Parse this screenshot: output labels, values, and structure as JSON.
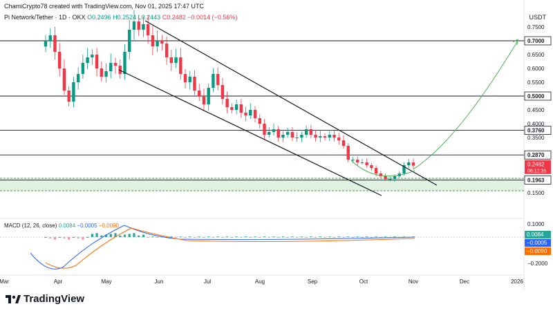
{
  "header": {
    "credit": "ChamiCrypto78 created with TradingView.com, Nov 01, 2025 17:47 UTC",
    "symbol": "Pi Network/Tether · 1D · OKX",
    "ohlc_o": "O0.2496",
    "ohlc_h": "H0.2524",
    "ohlc_l": "L0.2443",
    "ohlc_c": "C0.2482",
    "change": "−0.0014 (−0.56%)"
  },
  "axis": {
    "currency": "USDT",
    "price_ticks": [
      "0.7500",
      "0.6500",
      "0.6000",
      "0.5500",
      "0.4500",
      "0.4000",
      "0.3500",
      "0.2000",
      "0.1500"
    ],
    "macd_ticks": [
      "0.1000",
      "−0.1000",
      "−0.2000"
    ],
    "months": [
      "Mar",
      "Apr",
      "May",
      "Jun",
      "Jul",
      "Aug",
      "Sep",
      "Oct",
      "Nov",
      "Dec",
      "2026"
    ]
  },
  "levels": [
    {
      "label": "0.7000",
      "value": 0.7
    },
    {
      "label": "0.5000",
      "value": 0.5
    },
    {
      "label": "0.3760",
      "value": 0.376
    },
    {
      "label": "0.2870",
      "value": 0.287
    },
    {
      "label": "0.1963",
      "value": 0.1963
    }
  ],
  "price_badge": {
    "value": "0.2482",
    "timer": "06:12:35",
    "color": "#f23645"
  },
  "macd": {
    "title": "MACD (12, 26, close)",
    "hist": "0.0084",
    "macd": "−0.0005",
    "signal": "−0.0090",
    "colors": {
      "hist": "#26a69a",
      "macd": "#2962ff",
      "signal": "#ff6d00"
    }
  },
  "brand": {
    "name": "TradingView"
  },
  "colors": {
    "up": "#089981",
    "down": "#f23645",
    "projection": "#4caf50",
    "zone": "#c8e6c9"
  },
  "chart_data": {
    "type": "candlestick",
    "title": "",
    "xlabel": "",
    "ylabel": "",
    "ylim": [
      0.13,
      0.8
    ],
    "price_series_close": [
      0.7,
      0.72,
      0.66,
      0.6,
      0.52,
      0.48,
      0.55,
      0.58,
      0.62,
      0.64,
      0.65,
      0.6,
      0.57,
      0.59,
      0.62,
      0.61,
      0.58,
      0.66,
      0.74,
      0.77,
      0.74,
      0.76,
      0.72,
      0.68,
      0.7,
      0.69,
      0.64,
      0.62,
      0.64,
      0.58,
      0.55,
      0.57,
      0.52,
      0.5,
      0.47,
      0.53,
      0.58,
      0.54,
      0.49,
      0.46,
      0.45,
      0.47,
      0.44,
      0.43,
      0.45,
      0.42,
      0.4,
      0.36,
      0.37,
      0.38,
      0.35,
      0.36,
      0.37,
      0.35,
      0.35,
      0.36,
      0.38,
      0.36,
      0.35,
      0.355,
      0.35,
      0.36,
      0.35,
      0.34,
      0.32,
      0.27,
      0.27,
      0.26,
      0.26,
      0.25,
      0.24,
      0.22,
      0.21,
      0.2,
      0.2,
      0.21,
      0.22,
      0.25,
      0.26,
      0.2482
    ],
    "macd_hist": "0.0084",
    "macd_line": "−0.0005",
    "signal_line": "−0.0090"
  }
}
